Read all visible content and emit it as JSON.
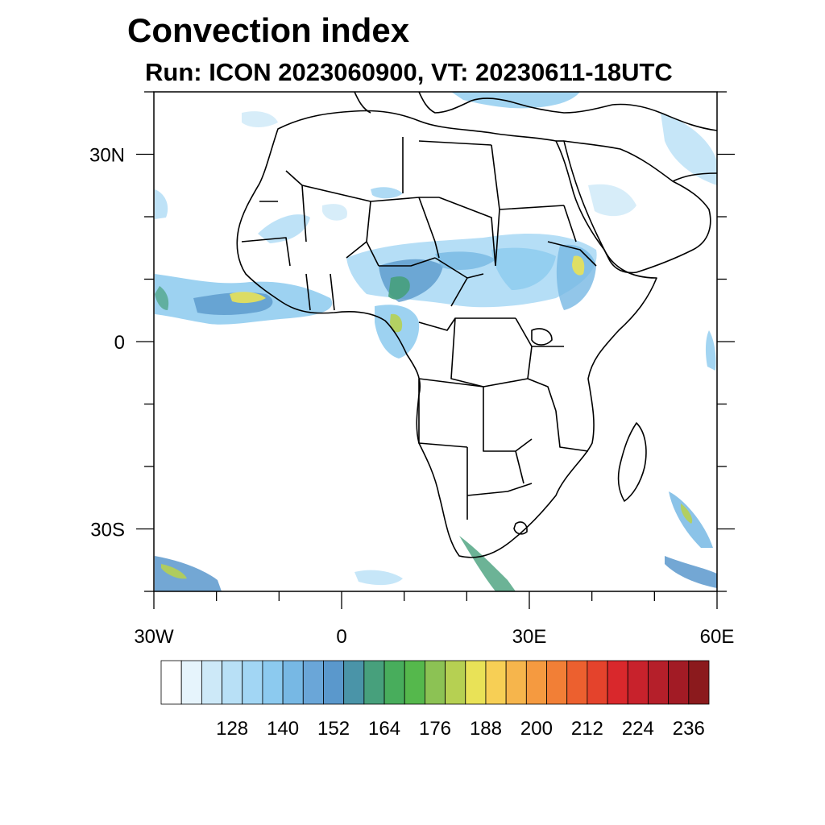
{
  "title": "Convection index",
  "subtitle": "Run: ICON 2023060900,  VT: 20230611-18UTC",
  "map": {
    "lon_range": [
      -30,
      60
    ],
    "lat_range": [
      -40,
      40
    ],
    "lat_tick_labels": [
      {
        "lat": 30,
        "label": "30N"
      },
      {
        "lat": 0,
        "label": "0"
      },
      {
        "lat": -30,
        "label": "30S"
      }
    ],
    "lon_tick_labels": [
      {
        "lon": -30,
        "label": "30W"
      },
      {
        "lon": 0,
        "label": "0"
      },
      {
        "lon": 30,
        "label": "30E"
      },
      {
        "lon": 60,
        "label": "60E"
      }
    ]
  },
  "colorbar": {
    "labels": [
      "128",
      "140",
      "152",
      "164",
      "176",
      "188",
      "200",
      "212",
      "224",
      "236"
    ],
    "colors": [
      "#ffffff",
      "#e6f4fc",
      "#cde9f8",
      "#b8e0f6",
      "#a2d6f4",
      "#8ccaef",
      "#77b8e4",
      "#6aa6d8",
      "#5a98cc",
      "#4a94a8",
      "#47a07c",
      "#48ad5c",
      "#55b84c",
      "#8cc254",
      "#b6d052",
      "#e9e257",
      "#f7cf55",
      "#f6b54c",
      "#f59a40",
      "#f27f36",
      "#ec602f",
      "#e4432c",
      "#d9282c",
      "#c8222c",
      "#b51f2a",
      "#a21b25",
      "#8b1a1d"
    ]
  }
}
